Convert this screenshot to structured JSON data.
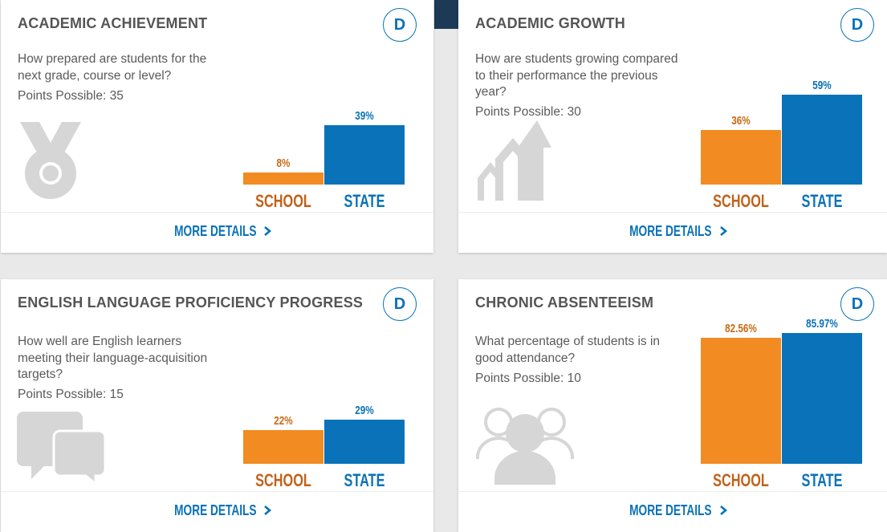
{
  "labels": {
    "school": "SCHOOL",
    "state": "STATE",
    "more_details": "MORE DETAILS"
  },
  "colors": {
    "school": "#f28b22",
    "state": "#0a72b8",
    "title": "#555555"
  },
  "cards": [
    {
      "title": "ACADEMIC ACHIEVEMENT",
      "grade": "D",
      "question": "How prepared are students for the next grade, course or level?",
      "points": "Points Possible: 35",
      "icon": "medal-icon",
      "school_value": 8,
      "state_value": 39,
      "school_label": "8%",
      "state_label": "39%"
    },
    {
      "title": "ACADEMIC GROWTH",
      "grade": "D",
      "question": "How are students growing compared to their performance the previous year?",
      "points": "Points Possible: 30",
      "icon": "growth-arrows-icon",
      "school_value": 36,
      "state_value": 59,
      "school_label": "36%",
      "state_label": "59%"
    },
    {
      "title": "ENGLISH LANGUAGE PROFICIENCY PROGRESS",
      "grade": "D",
      "question": "How well are English learners meeting their language-acquisition targets?",
      "points": "Points Possible: 15",
      "icon": "chat-bubbles-icon",
      "school_value": 22,
      "state_value": 29,
      "school_label": "22%",
      "state_label": "29%"
    },
    {
      "title": "CHRONIC ABSENTEEISM",
      "grade": "D",
      "question": "What percentage of students is in good attendance?",
      "points": "Points Possible: 10",
      "icon": "people-group-icon",
      "school_value": 82.56,
      "state_value": 85.97,
      "school_label": "82.56%",
      "state_label": "85.97%"
    }
  ]
}
